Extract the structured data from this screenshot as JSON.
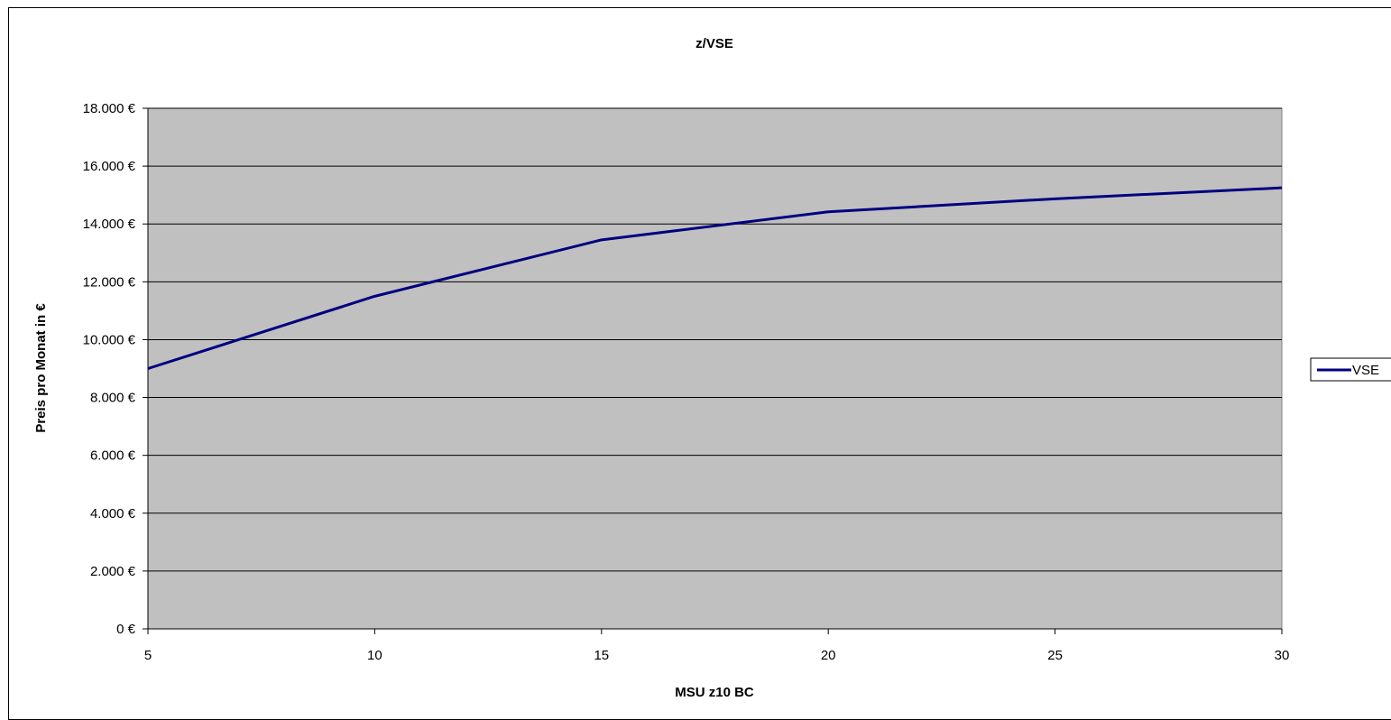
{
  "chart_data": {
    "type": "line",
    "title": "z/VSE",
    "xlabel": "MSU z10 BC",
    "ylabel": "Preis pro Monat in €",
    "x": [
      5,
      10,
      15,
      20,
      25,
      30
    ],
    "xlim": [
      5,
      30
    ],
    "ylim": [
      0,
      18000
    ],
    "x_ticks": [
      "5",
      "10",
      "15",
      "20",
      "25",
      "30"
    ],
    "y_ticks": [
      "0 €",
      "2.000 €",
      "4.000 €",
      "6.000 €",
      "8.000 €",
      "10.000 €",
      "12.000 €",
      "14.000 €",
      "16.000 €",
      "18.000 €"
    ],
    "grid": "horizontal",
    "plot_background": "#c0c0c0",
    "legend": {
      "placement": "right"
    },
    "series": [
      {
        "name": "VSE",
        "color": "#000080",
        "values": [
          9000,
          11500,
          13450,
          14420,
          14870,
          15250
        ]
      }
    ]
  }
}
